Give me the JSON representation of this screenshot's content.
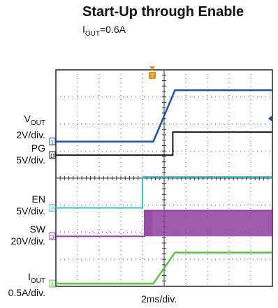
{
  "title": "Start-Up through Enable",
  "subtitle": {
    "main": "I",
    "sub": "OUT",
    "rest": "=0.6A"
  },
  "channel_labels": [
    {
      "id": "vout",
      "name_main": "V",
      "name_sub": "OUT",
      "scale": "2V/div."
    },
    {
      "id": "pg",
      "name_main": "PG",
      "name_sub": "",
      "scale": "5V/div."
    },
    {
      "id": "en",
      "name_main": "EN",
      "name_sub": "",
      "scale": "5V/div."
    },
    {
      "id": "sw",
      "name_main": "SW",
      "name_sub": "",
      "scale": "20V/div."
    },
    {
      "id": "iout",
      "name_main": "I",
      "name_sub": "OUT",
      "scale": "0.5A/div."
    }
  ],
  "timebase": "2ms/div.",
  "colors": {
    "vout": "#1f4fa8",
    "pg": "#1a1a1a",
    "en": "#3cc4d4",
    "sw": "#8e3fa0",
    "iout": "#5cc040",
    "trigger": "#f08a1c",
    "grid": "#555555"
  },
  "chart_data": {
    "type": "line",
    "title": "Start-Up through Enable",
    "x_unit": "div",
    "xlim": [
      0,
      10
    ],
    "ylim": [
      0,
      8
    ],
    "grid": true,
    "series": [
      {
        "name": "VOUT",
        "channel_marker": "1",
        "x": [
          0,
          4.5,
          5.0,
          5.5,
          10
        ],
        "y": [
          5.35,
          5.35,
          6.3,
          7.25,
          7.25
        ]
      },
      {
        "name": "PG",
        "channel_marker": "D",
        "x": [
          0,
          5.4,
          5.4,
          10
        ],
        "y": [
          4.85,
          4.85,
          5.7,
          5.7
        ]
      },
      {
        "name": "EN",
        "channel_marker": "2",
        "x": [
          0,
          4.0,
          4.0,
          10
        ],
        "y": [
          2.9,
          2.9,
          4.05,
          4.05
        ]
      },
      {
        "name": "SW",
        "channel_marker": "3",
        "x": [
          0,
          4.1,
          4.1,
          10
        ],
        "y": [
          1.85,
          1.85,
          2.8,
          2.8
        ],
        "switching_region": [
          4.1,
          10
        ],
        "switching_band": [
          1.85,
          2.8
        ]
      },
      {
        "name": "IOUT",
        "channel_marker": "4",
        "x": [
          0,
          4.5,
          5.5,
          10
        ],
        "y": [
          0.1,
          0.1,
          1.25,
          1.25
        ]
      }
    ],
    "trigger_marker": {
      "label": "T",
      "x_div": 4.45
    }
  }
}
